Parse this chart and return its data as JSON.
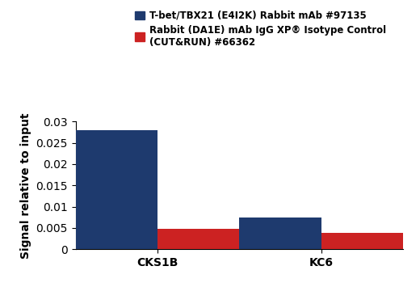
{
  "categories": [
    "CKS1B",
    "KC6"
  ],
  "blue_values": [
    0.028,
    0.0075
  ],
  "red_values": [
    0.0047,
    0.0038
  ],
  "blue_color": "#1e3a6e",
  "red_color": "#cc2222",
  "ylabel": "Signal relative to input",
  "ylim": [
    0,
    0.03
  ],
  "yticks": [
    0,
    0.005,
    0.01,
    0.015,
    0.02,
    0.025,
    0.03
  ],
  "legend_blue": "T-bet/TBX21 (E4I2K) Rabbit mAb #97135",
  "legend_red": "Rabbit (DA1E) mAb IgG XP® Isotype Control\n(CUT&RUN) #66362",
  "bar_width": 0.25,
  "background_color": "#ffffff",
  "tick_label_fontsize": 10,
  "ylabel_fontsize": 10,
  "legend_fontsize": 8.5
}
